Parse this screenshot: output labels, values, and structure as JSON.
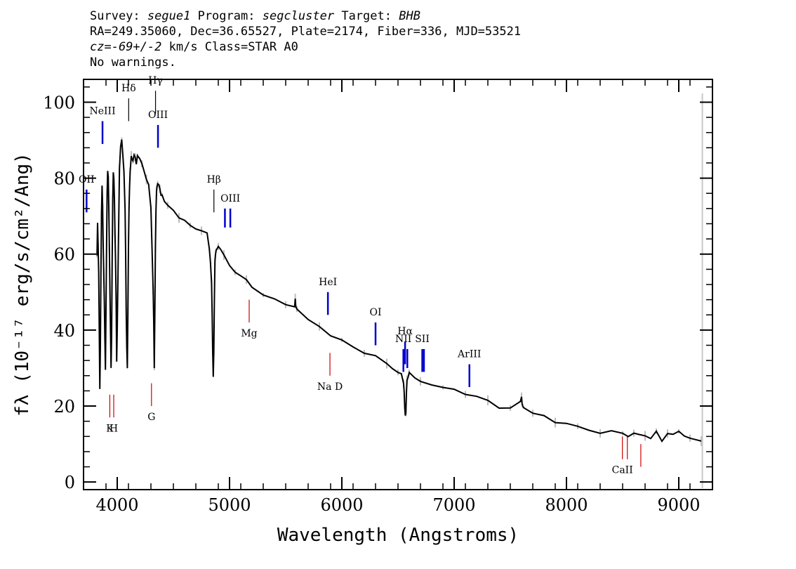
{
  "header": {
    "line1": {
      "survey_label": "Survey:",
      "survey": "segue1",
      "program_label": "Program:",
      "program": "segcluster",
      "target_label": "Target:",
      "target": "BHB"
    },
    "line2": "RA=249.35060, Dec=36.65527, Plate=2174, Fiber=336, MJD=53521",
    "line3": {
      "cz_prefix": "cz=",
      "cz_value": "-69+/-2",
      "rest": " km/s Class=STAR A0"
    },
    "line4": "No warnings."
  },
  "chart_data": {
    "type": "line",
    "xlabel": "Wavelength (Angstroms)",
    "ylabel": "fλ (10⁻¹⁷ erg/s/cm²/Ang)",
    "xlim": [
      3700,
      9300
    ],
    "ylim": [
      -2,
      106
    ],
    "x_ticks": [
      4000,
      5000,
      6000,
      7000,
      8000,
      9000
    ],
    "y_ticks": [
      0,
      20,
      40,
      60,
      80,
      100
    ],
    "colors": {
      "flux": "#000000",
      "noise": "#bdbdbd",
      "emission": "#0000cc",
      "absorption": "#cc0000",
      "end_marker": "#c8c8c8"
    },
    "series": [
      {
        "x": [
          3820,
          3825,
          3830,
          3835,
          3840,
          3845,
          3850,
          3855,
          3860,
          3865,
          3870,
          3875,
          3880,
          3885,
          3890,
          3895,
          3900,
          3905,
          3910,
          3915,
          3920,
          3925,
          3930,
          3935,
          3940,
          3945,
          3950,
          3955,
          3960,
          3965,
          3970,
          3975,
          3980,
          3985,
          3990,
          3995,
          4000,
          4010,
          4020,
          4030,
          4040,
          4050,
          4060,
          4070,
          4075,
          4080,
          4085,
          4090,
          4095,
          4100,
          4105,
          4110,
          4115,
          4120,
          4125,
          4130,
          4140,
          4150,
          4160,
          4170,
          4180,
          4200,
          4220,
          4240,
          4260,
          4280,
          4300,
          4310,
          4320,
          4325,
          4330,
          4335,
          4340,
          4345,
          4350,
          4355,
          4360,
          4370,
          4380,
          4390,
          4400,
          4420,
          4450,
          4500,
          4550,
          4600,
          4650,
          4700,
          4750,
          4800,
          4820,
          4830,
          4840,
          4845,
          4850,
          4855,
          4860,
          4865,
          4870,
          4875,
          4880,
          4890,
          4900,
          4920,
          4950,
          5000,
          5050,
          5100,
          5150,
          5200,
          5300,
          5400,
          5500,
          5580,
          5585,
          5590,
          5600,
          5700,
          5800,
          5900,
          6000,
          6100,
          6200,
          6300,
          6400,
          6450,
          6500,
          6530,
          6550,
          6555,
          6560,
          6565,
          6570,
          6575,
          6580,
          6590,
          6600,
          6650,
          6700,
          6800,
          6900,
          7000,
          7100,
          7200,
          7300,
          7400,
          7500,
          7590,
          7600,
          7605,
          7610,
          7620,
          7700,
          7800,
          7900,
          8000,
          8100,
          8200,
          8300,
          8400,
          8500,
          8550,
          8600,
          8650,
          8700,
          8750,
          8800,
          8850,
          8900,
          8950,
          9000,
          9050,
          9100,
          9150,
          9200
        ],
        "y": [
          60,
          68,
          62,
          55,
          40,
          25,
          36,
          55,
          70,
          78,
          73,
          62,
          55,
          48,
          38,
          30,
          45,
          62,
          76,
          82,
          80,
          72,
          62,
          50,
          40,
          30,
          38,
          58,
          74,
          82,
          80,
          74,
          66,
          58,
          48,
          32,
          40,
          62,
          82,
          88,
          90,
          86,
          82,
          72,
          60,
          45,
          35,
          30,
          45,
          62,
          72,
          78,
          82,
          84,
          86,
          85,
          84,
          86,
          85,
          84,
          86,
          85,
          84,
          82,
          80,
          78,
          72,
          62,
          50,
          42,
          30,
          45,
          62,
          72,
          76,
          78,
          79,
          78,
          77,
          76,
          75,
          74,
          73,
          71,
          70,
          69,
          68,
          67,
          66,
          65,
          62,
          58,
          52,
          45,
          35,
          28,
          34,
          48,
          58,
          60,
          61,
          62,
          62,
          61,
          60,
          57,
          55,
          54,
          53,
          51,
          49,
          48,
          47,
          46,
          48,
          46,
          45,
          43,
          41,
          39,
          37,
          35,
          34,
          33,
          31,
          30,
          29,
          28,
          26,
          24,
          20,
          17,
          18,
          23,
          27,
          28,
          29,
          28,
          27,
          26,
          25,
          24,
          23,
          22,
          21,
          20,
          20,
          21,
          23,
          21,
          20,
          19,
          18,
          17,
          16,
          15,
          15,
          14,
          13,
          13,
          13,
          12,
          13,
          13,
          12,
          12,
          13,
          11,
          13,
          12,
          13,
          12,
          11,
          11,
          11
        ]
      }
    ],
    "lines": [
      {
        "label": "OII",
        "wave": 3727,
        "kind": "emission",
        "pos": "above",
        "y0": 71,
        "y1": 77
      },
      {
        "label": "NeIII",
        "wave": 3869,
        "kind": "emission",
        "pos": "above",
        "y0": 89,
        "y1": 95
      },
      {
        "label": "Hδ",
        "wave": 4102,
        "kind": "balmer",
        "pos": "above",
        "y0": 95,
        "y1": 101
      },
      {
        "label": "Hγ",
        "wave": 4341,
        "kind": "balmer",
        "pos": "above",
        "y0": 97,
        "y1": 103
      },
      {
        "label": "OIII",
        "wave": 4363,
        "kind": "emission",
        "pos": "above",
        "y0": 88,
        "y1": 94
      },
      {
        "label": "Hβ",
        "wave": 4861,
        "kind": "balmer",
        "pos": "above",
        "y0": 71,
        "y1": 77
      },
      {
        "label": "OIII",
        "wave": 4959,
        "kind": "emission",
        "pos": "above",
        "y0": 67,
        "y1": 72,
        "text": ""
      },
      {
        "label": "OIII",
        "wave": 5007,
        "kind": "emission",
        "pos": "above",
        "y0": 67,
        "y1": 72
      },
      {
        "label": "HeI",
        "wave": 5876,
        "kind": "emission",
        "pos": "above",
        "y0": 44,
        "y1": 50
      },
      {
        "label": "OI",
        "wave": 6300,
        "kind": "emission",
        "pos": "above",
        "y0": 36,
        "y1": 42
      },
      {
        "label": "NII",
        "wave": 6548,
        "kind": "emission",
        "pos": "mid",
        "y0": 29,
        "y1": 35
      },
      {
        "label": "Hα",
        "wave": 6563,
        "kind": "emission",
        "pos": "above",
        "y0": 31,
        "y1": 37
      },
      {
        "label": "NII",
        "wave": 6583,
        "kind": "emission",
        "pos": "above",
        "y0": 30,
        "y1": 35,
        "text": ""
      },
      {
        "label": "SII",
        "wave": 6716,
        "kind": "emission",
        "pos": "above",
        "y0": 29,
        "y1": 35
      },
      {
        "label": "SII",
        "wave": 6731,
        "kind": "emission",
        "pos": "above",
        "y0": 29,
        "y1": 35,
        "text": ""
      },
      {
        "label": "ArIII",
        "wave": 7136,
        "kind": "emission",
        "pos": "above",
        "y0": 25,
        "y1": 31
      },
      {
        "label": "K",
        "wave": 3934,
        "kind": "absorption",
        "pos": "below",
        "y0": 17,
        "y1": 23
      },
      {
        "label": "H",
        "wave": 3969,
        "kind": "absorption",
        "pos": "below",
        "y0": 17,
        "y1": 23
      },
      {
        "label": "G",
        "wave": 4305,
        "kind": "absorption",
        "pos": "below",
        "y0": 20,
        "y1": 26
      },
      {
        "label": "Mg",
        "wave": 5175,
        "kind": "absorption",
        "pos": "below",
        "y0": 42,
        "y1": 48
      },
      {
        "label": "Na D",
        "wave": 5894,
        "kind": "absorption",
        "pos": "below",
        "y0": 28,
        "y1": 34
      },
      {
        "label": "CaII",
        "wave": 8498,
        "kind": "absorption",
        "pos": "below",
        "y0": 6,
        "y1": 12
      },
      {
        "label": "CaII",
        "wave": 8542,
        "kind": "absorption",
        "pos": "below",
        "y0": 6,
        "y1": 12,
        "text": ""
      },
      {
        "label": "CaII",
        "wave": 8662,
        "kind": "absorption",
        "pos": "below",
        "y0": 4,
        "y1": 10,
        "text": ""
      }
    ]
  }
}
